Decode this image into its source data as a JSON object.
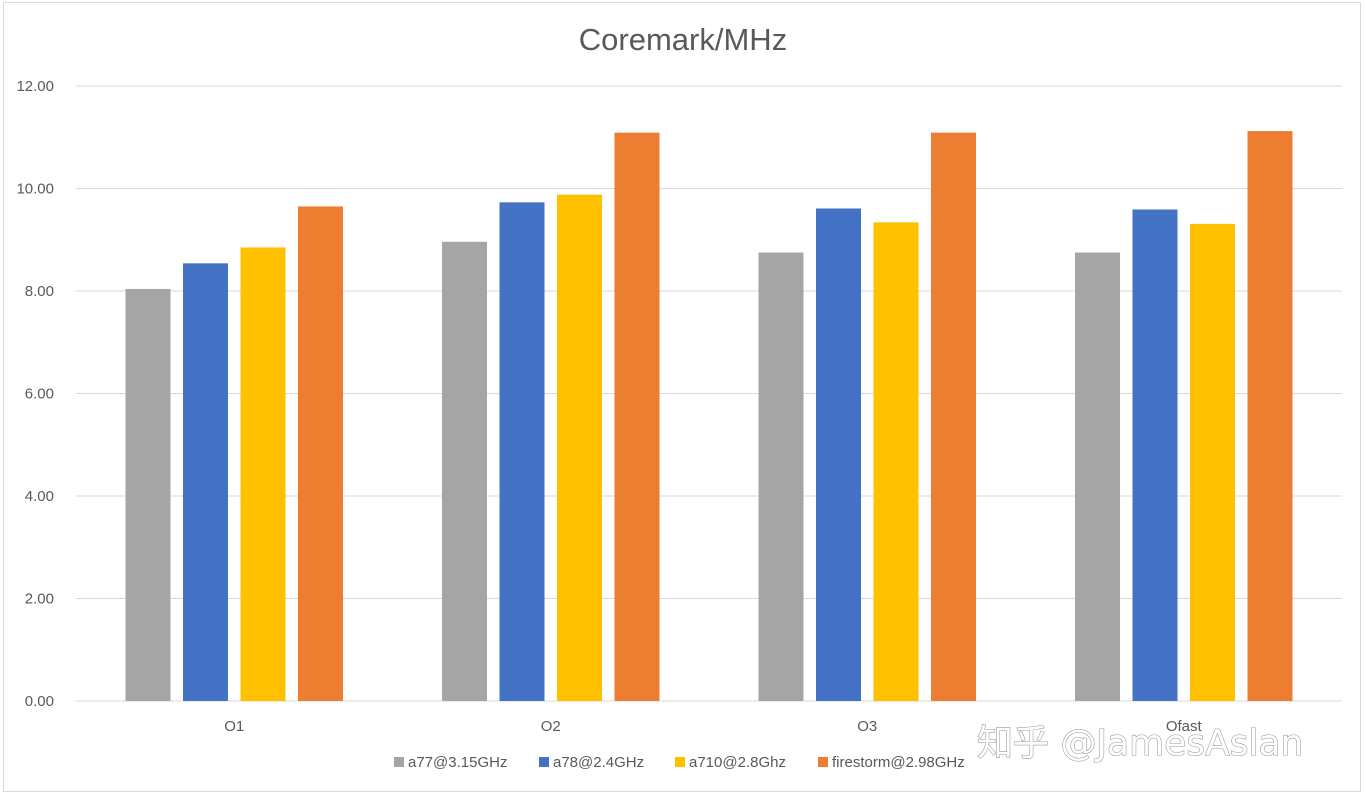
{
  "watermark": "知乎 @JamesAslan",
  "chart_data": {
    "type": "bar",
    "title": "Coremark/MHz",
    "xlabel": "",
    "ylabel": "",
    "categories": [
      "O1",
      "O2",
      "O3",
      "Ofast"
    ],
    "ylim": [
      0,
      12
    ],
    "yticks": [
      "0.00",
      "2.00",
      "4.00",
      "6.00",
      "8.00",
      "10.00",
      "12.00"
    ],
    "grid": true,
    "legend_position": "bottom",
    "series": [
      {
        "name": "a77@3.15GHz",
        "color": "#a5a5a5",
        "values": [
          8.04,
          8.96,
          8.75,
          8.75
        ]
      },
      {
        "name": "a78@2.4GHz",
        "color": "#4472c4",
        "values": [
          8.54,
          9.73,
          9.61,
          9.59
        ]
      },
      {
        "name": "a710@2.8Ghz",
        "color": "#ffc000",
        "values": [
          8.85,
          9.88,
          9.34,
          9.31
        ]
      },
      {
        "name": "firestorm@2.98GHz",
        "color": "#ed7d31",
        "values": [
          9.65,
          11.09,
          11.09,
          11.12
        ]
      }
    ]
  }
}
